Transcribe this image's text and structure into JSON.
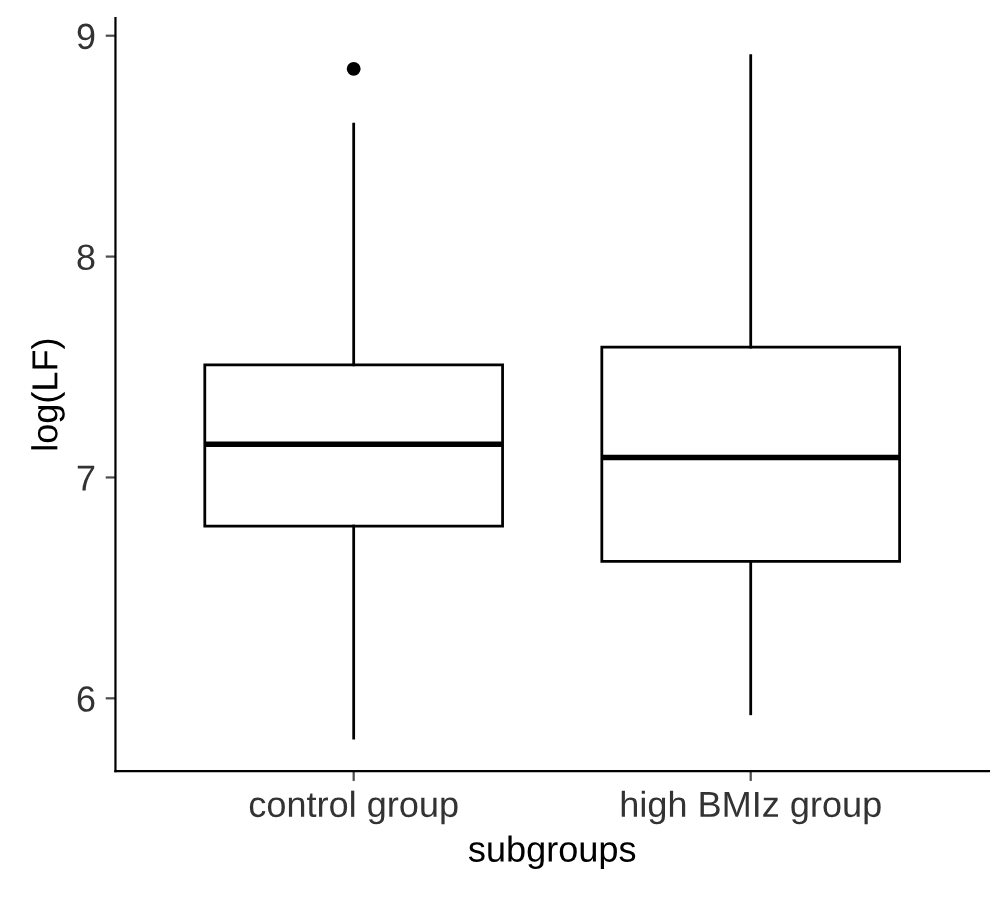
{
  "chart_data": {
    "type": "box",
    "xlabel": "subgroups",
    "ylabel": "log(LF)",
    "categories": [
      "control group",
      "high BMIz group"
    ],
    "boxes": [
      {
        "low": 5.82,
        "q1": 6.78,
        "median": 7.15,
        "q3": 7.51,
        "high": 8.6,
        "outliers": [
          8.85
        ]
      },
      {
        "low": 5.93,
        "q1": 6.62,
        "median": 7.09,
        "q3": 7.59,
        "high": 8.91
      }
    ],
    "ylim": [
      5.67,
      9.08
    ],
    "yticks": [
      6,
      7,
      8,
      9
    ],
    "grid": false,
    "color": "#000000"
  }
}
